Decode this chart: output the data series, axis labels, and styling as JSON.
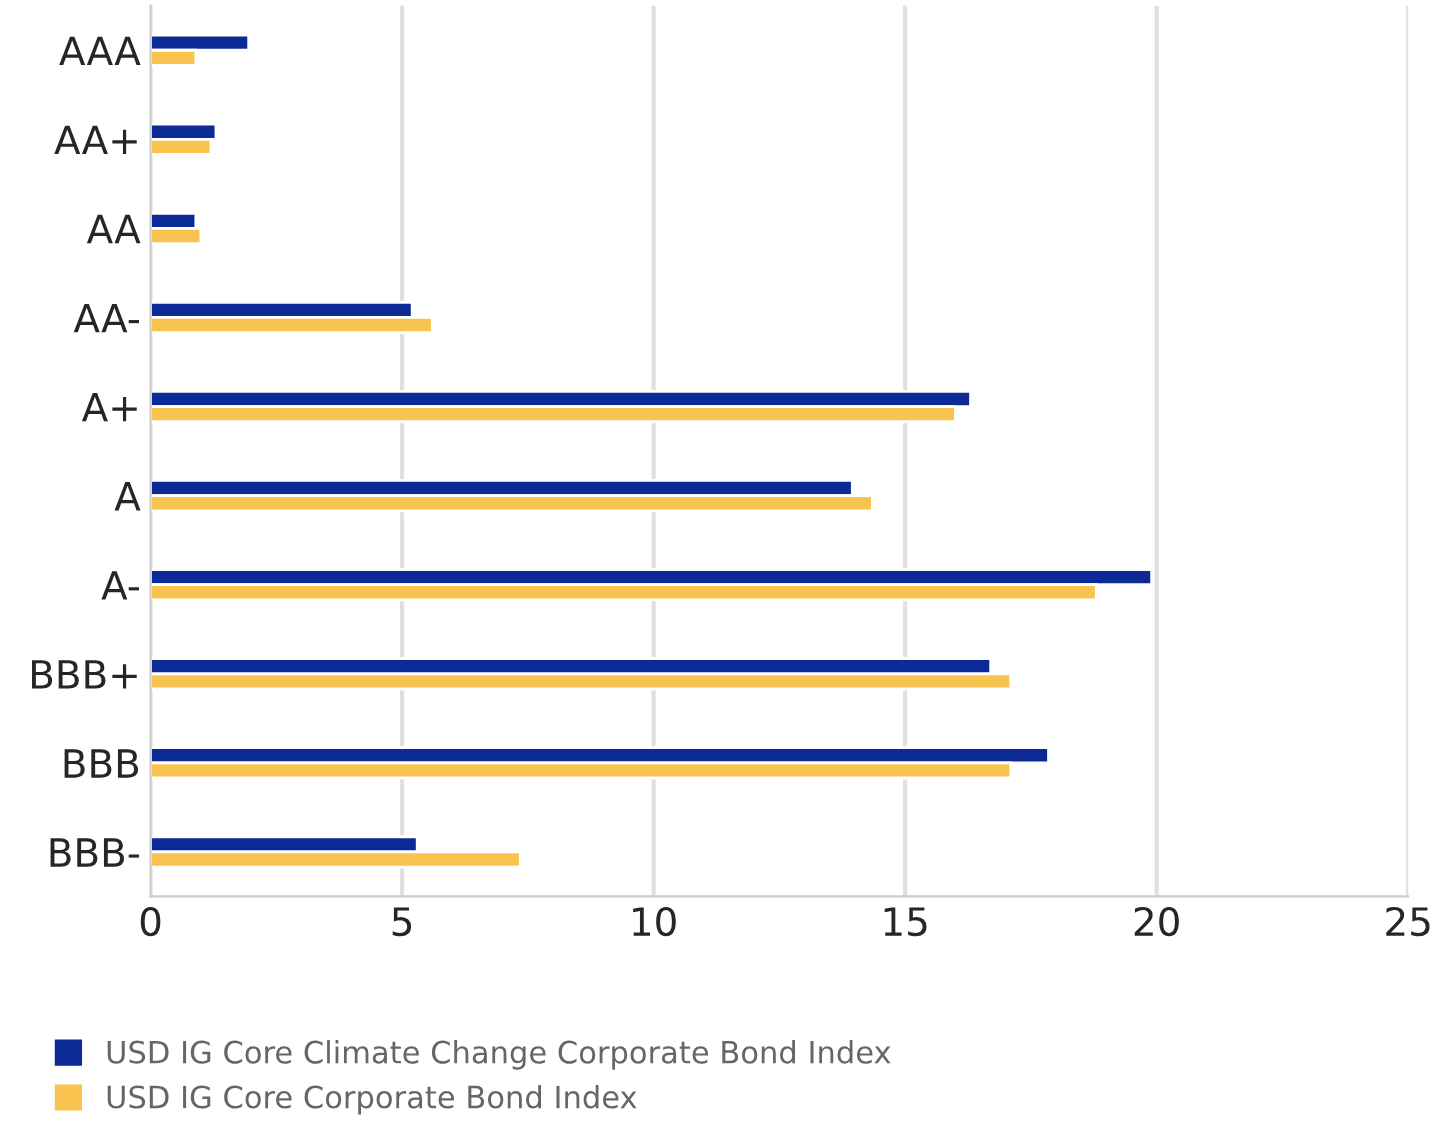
{
  "chart_data": {
    "type": "bar",
    "orientation": "horizontal",
    "categories": [
      "AAA",
      "AA+",
      "AA",
      "AA-",
      "A+",
      "A",
      "A-",
      "BBB+",
      "BBB",
      "BBB-"
    ],
    "series": [
      {
        "name": "USD IG Core Climate Change Corporate Bond Index",
        "color": "#0b2a95",
        "values": [
          1.95,
          1.3,
          0.9,
          5.2,
          16.3,
          13.95,
          19.9,
          16.7,
          17.85,
          5.3
        ]
      },
      {
        "name": "USD IG Core Corporate Bond Index",
        "color": "#f8c44f",
        "values": [
          0.9,
          1.2,
          1.0,
          5.6,
          16.0,
          14.35,
          18.8,
          17.1,
          17.1,
          7.35
        ]
      }
    ],
    "xlim": [
      0,
      25
    ],
    "xticks": [
      0,
      5,
      10,
      15,
      20,
      25
    ],
    "grid": "x",
    "legend": "bottom left"
  }
}
